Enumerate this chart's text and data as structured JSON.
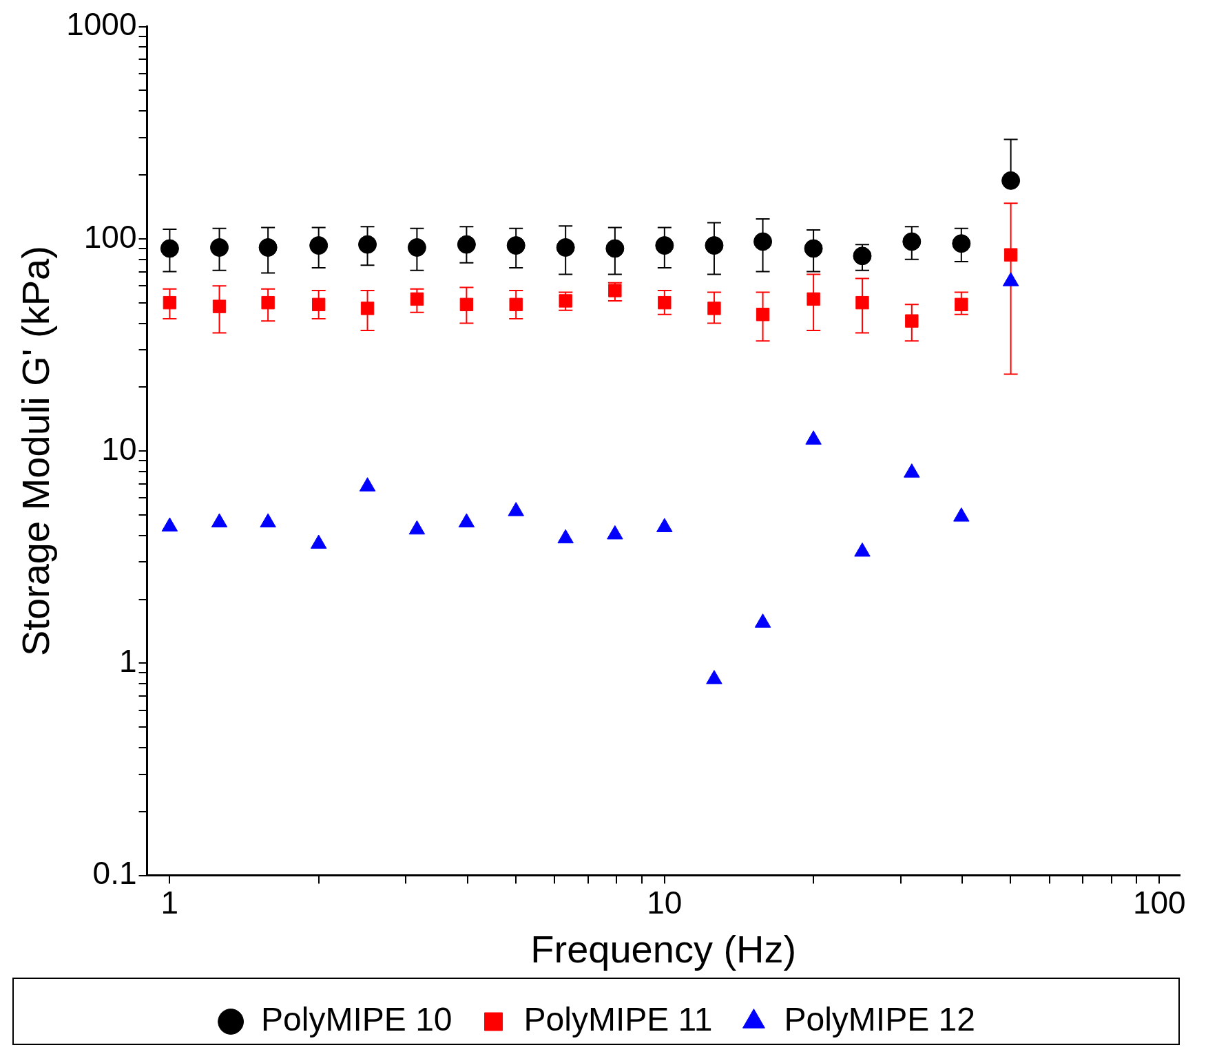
{
  "chart_data": {
    "type": "scatter",
    "xlabel": "Frequency (Hz)",
    "ylabel": "Storage Moduli G' (kPa)",
    "log": "xy",
    "grid": false,
    "legend": "bottom",
    "xlim": [
      0.9,
      110
    ],
    "ylim": [
      0.1,
      1000
    ],
    "xticks": [
      1,
      {
        "value": 2,
        "label": null
      },
      {
        "value": 3,
        "label": null
      },
      {
        "value": 4,
        "label": null
      },
      {
        "value": 5,
        "label": null
      },
      {
        "value": 6,
        "label": null
      },
      {
        "value": 7,
        "label": null
      },
      {
        "value": 8,
        "label": null
      },
      {
        "value": 9,
        "label": null
      },
      10,
      {
        "value": 20,
        "label": null
      },
      {
        "value": 30,
        "label": null
      },
      {
        "value": 40,
        "label": null
      },
      {
        "value": 50,
        "label": null
      },
      {
        "value": 60,
        "label": null
      },
      {
        "value": 70,
        "label": null
      },
      {
        "value": 80,
        "label": null
      },
      {
        "value": 90,
        "label": null
      },
      100
    ],
    "yticks": [
      0.1,
      {
        "value": 0.2,
        "label": null
      },
      {
        "value": 0.3,
        "label": null
      },
      {
        "value": 0.4,
        "label": null
      },
      {
        "value": 0.5,
        "label": null
      },
      {
        "value": 0.6,
        "label": null
      },
      {
        "value": 0.7,
        "label": null
      },
      {
        "value": 0.8,
        "label": null
      },
      {
        "value": 0.9,
        "label": null
      },
      1,
      {
        "value": 2,
        "label": null
      },
      {
        "value": 3,
        "label": null
      },
      {
        "value": 4,
        "label": null
      },
      {
        "value": 5,
        "label": null
      },
      {
        "value": 6,
        "label": null
      },
      {
        "value": 7,
        "label": null
      },
      {
        "value": 8,
        "label": null
      },
      {
        "value": 9,
        "label": null
      },
      10,
      {
        "value": 20,
        "label": null
      },
      {
        "value": 30,
        "label": null
      },
      {
        "value": 40,
        "label": null
      },
      {
        "value": 50,
        "label": null
      },
      {
        "value": 60,
        "label": null
      },
      {
        "value": 70,
        "label": null
      },
      {
        "value": 80,
        "label": null
      },
      {
        "value": 90,
        "label": null
      },
      100,
      {
        "value": 200,
        "label": null
      },
      {
        "value": 300,
        "label": null
      },
      {
        "value": 400,
        "label": null
      },
      {
        "value": 500,
        "label": null
      },
      {
        "value": 600,
        "label": null
      },
      {
        "value": 700,
        "label": null
      },
      {
        "value": 800,
        "label": null
      },
      {
        "value": 900,
        "label": null
      },
      1000
    ],
    "x": [
      1,
      1.26,
      1.58,
      2,
      2.51,
      3.16,
      3.98,
      5.01,
      6.31,
      7.94,
      10,
      12.6,
      15.8,
      20,
      25.1,
      31.6,
      39.8,
      50.1
    ],
    "series": [
      {
        "name": "PolyMIPE 10",
        "color": "#000000",
        "marker": "circle",
        "values": [
          90,
          91,
          91,
          93,
          94,
          91,
          94,
          93,
          91,
          90,
          93,
          93,
          97,
          90,
          83,
          97,
          95,
          188
        ],
        "errors": [
          [
            70,
            111
          ],
          [
            71,
            112
          ],
          [
            69,
            113
          ],
          [
            73,
            113
          ],
          [
            75,
            114
          ],
          [
            71,
            112
          ],
          [
            77,
            114
          ],
          [
            73,
            112
          ],
          [
            68,
            115
          ],
          [
            68,
            113
          ],
          [
            73,
            113
          ],
          [
            68,
            119
          ],
          [
            70,
            124
          ],
          [
            70,
            110
          ],
          [
            71,
            94
          ],
          [
            80,
            114
          ],
          [
            78,
            112
          ],
          [
            188,
            294
          ]
        ]
      },
      {
        "name": "PolyMIPE 11",
        "color": "#ff0000",
        "marker": "square",
        "values": [
          50,
          48,
          50,
          49,
          47,
          52,
          49,
          49,
          51,
          57,
          50,
          47,
          44,
          52,
          50,
          41,
          49,
          84
        ],
        "errors": [
          [
            42,
            58
          ],
          [
            36,
            60
          ],
          [
            41,
            58
          ],
          [
            42,
            57
          ],
          [
            37,
            57
          ],
          [
            45,
            58
          ],
          [
            40,
            59
          ],
          [
            42,
            57
          ],
          [
            46,
            56
          ],
          [
            51,
            62
          ],
          [
            44,
            57
          ],
          [
            40,
            56
          ],
          [
            33,
            56
          ],
          [
            37,
            68
          ],
          [
            36,
            65
          ],
          [
            33,
            49
          ],
          [
            44,
            56
          ],
          [
            23,
            147
          ]
        ]
      },
      {
        "name": "PolyMIPE 12",
        "color": "#0000ff",
        "marker": "triangle",
        "values": [
          4.4,
          4.6,
          4.6,
          3.65,
          6.8,
          4.26,
          4.6,
          5.2,
          3.87,
          4.04,
          4.37,
          0.84,
          1.55,
          11.3,
          3.35,
          7.9,
          4.9,
          63
        ]
      }
    ]
  }
}
